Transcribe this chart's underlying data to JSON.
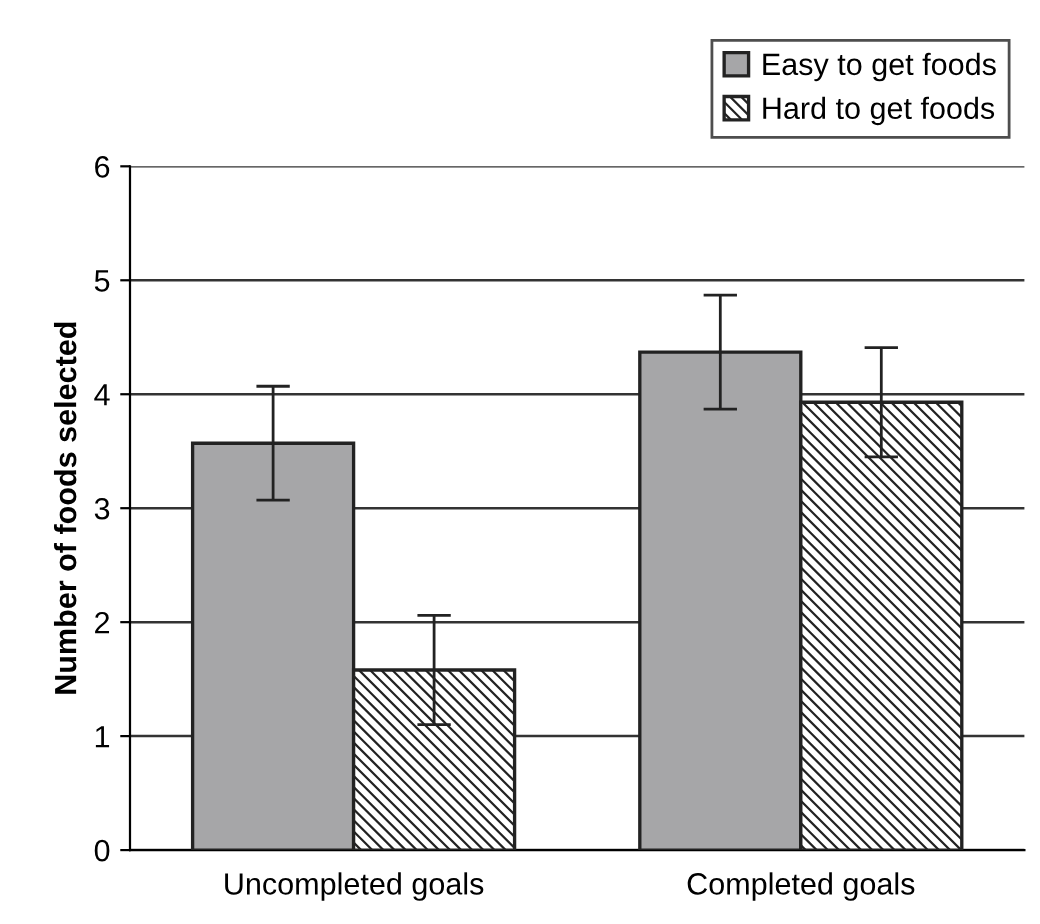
{
  "chart_data": {
    "type": "bar",
    "ylabel": "Number of foods selected",
    "categories": [
      "Uncompleted goals",
      "Completed goals"
    ],
    "series": [
      {
        "name": "Easy to get foods",
        "color": "#a6a6a8",
        "values": [
          3.57,
          4.37
        ],
        "errors": [
          0.5,
          0.5
        ]
      },
      {
        "name": "Hard to get foods",
        "color": "#222222",
        "values": [
          1.58,
          3.93
        ],
        "errors": [
          0.48,
          0.48
        ]
      }
    ],
    "ylim": [
      0,
      6
    ],
    "yticks": [
      0,
      1,
      2,
      3,
      4,
      5,
      6
    ],
    "grid": "y",
    "legend": "top right"
  }
}
